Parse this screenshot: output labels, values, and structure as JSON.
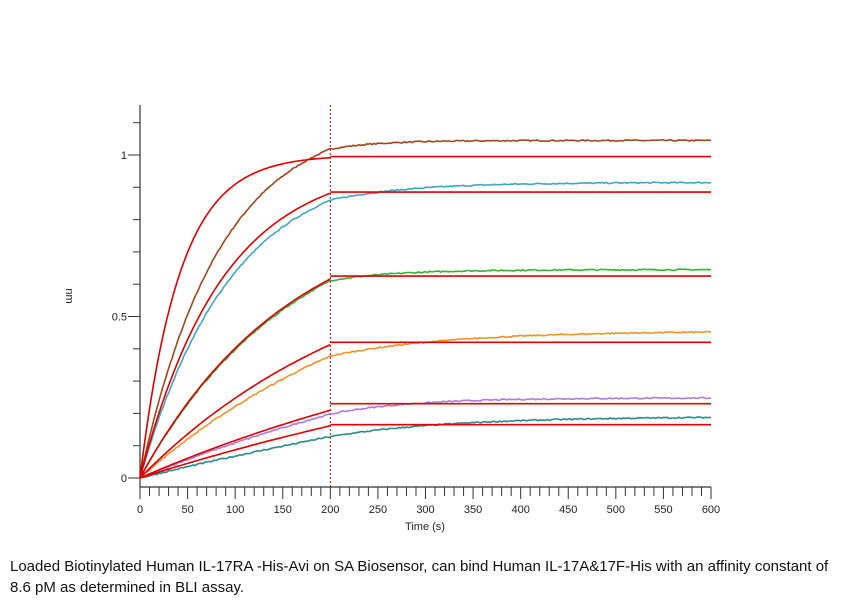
{
  "chart_data": {
    "type": "line",
    "title": "",
    "xlabel": "Time (s)",
    "ylabel": "nm",
    "xlim": [
      0,
      600
    ],
    "ylim": [
      -0.02,
      1.15
    ],
    "x_ticks": [
      0,
      50,
      100,
      150,
      200,
      250,
      300,
      350,
      400,
      450,
      500,
      550,
      600
    ],
    "y_ticks": [
      0,
      0.5,
      1
    ],
    "y_tick_labels": [
      "0",
      "0.5",
      "1"
    ],
    "x_minor_step": 10,
    "y_minor_step": 0.1,
    "association_end": 200,
    "divider_color": "#cc0000",
    "fit_color": "#e00000",
    "series": [
      {
        "color": "#a0461a",
        "assoc_plateau": 1.12,
        "k_on": 0.012,
        "dissoc_end": 1.045,
        "dissoc_k": 0.02
      },
      {
        "color": "#3fa8c0",
        "assoc_plateau": 0.98,
        "k_on": 0.0105,
        "dissoc_end": 0.915,
        "dissoc_k": 0.012
      },
      {
        "color": "#39b03a",
        "assoc_plateau": 0.86,
        "k_on": 0.0062,
        "dissoc_end": 0.645,
        "dissoc_k": 0.015
      },
      {
        "color": "#f0922a",
        "assoc_plateau": 0.75,
        "k_on": 0.0035,
        "dissoc_end": 0.455,
        "dissoc_k": 0.008
      },
      {
        "color": "#b07ad8",
        "assoc_plateau": 0.6,
        "k_on": 0.002,
        "dissoc_end": 0.248,
        "dissoc_k": 0.012
      },
      {
        "color": "#2a8a8a",
        "assoc_plateau": 0.6,
        "k_on": 0.0012,
        "dissoc_end": 0.19,
        "dissoc_k": 0.008
      }
    ],
    "fits": [
      {
        "plateau": 1.0,
        "k": 0.024,
        "dissoc_value": 0.995
      },
      {
        "plateau": 0.98,
        "k": 0.0115,
        "dissoc_value": 0.885
      },
      {
        "plateau": 0.86,
        "k": 0.0063,
        "dissoc_value": 0.625
      },
      {
        "plateau": 0.75,
        "k": 0.004,
        "dissoc_value": 0.42
      },
      {
        "plateau": 0.6,
        "k": 0.00215,
        "dissoc_value": 0.23
      },
      {
        "plateau": 0.6,
        "k": 0.00157,
        "dissoc_value": 0.165
      }
    ]
  },
  "caption": "Loaded Biotinylated Human IL-17RA -His-Avi on SA Biosensor, can bind Human IL-17A&17F-His with an affinity constant of 8.6 pM as determined in BLI assay."
}
